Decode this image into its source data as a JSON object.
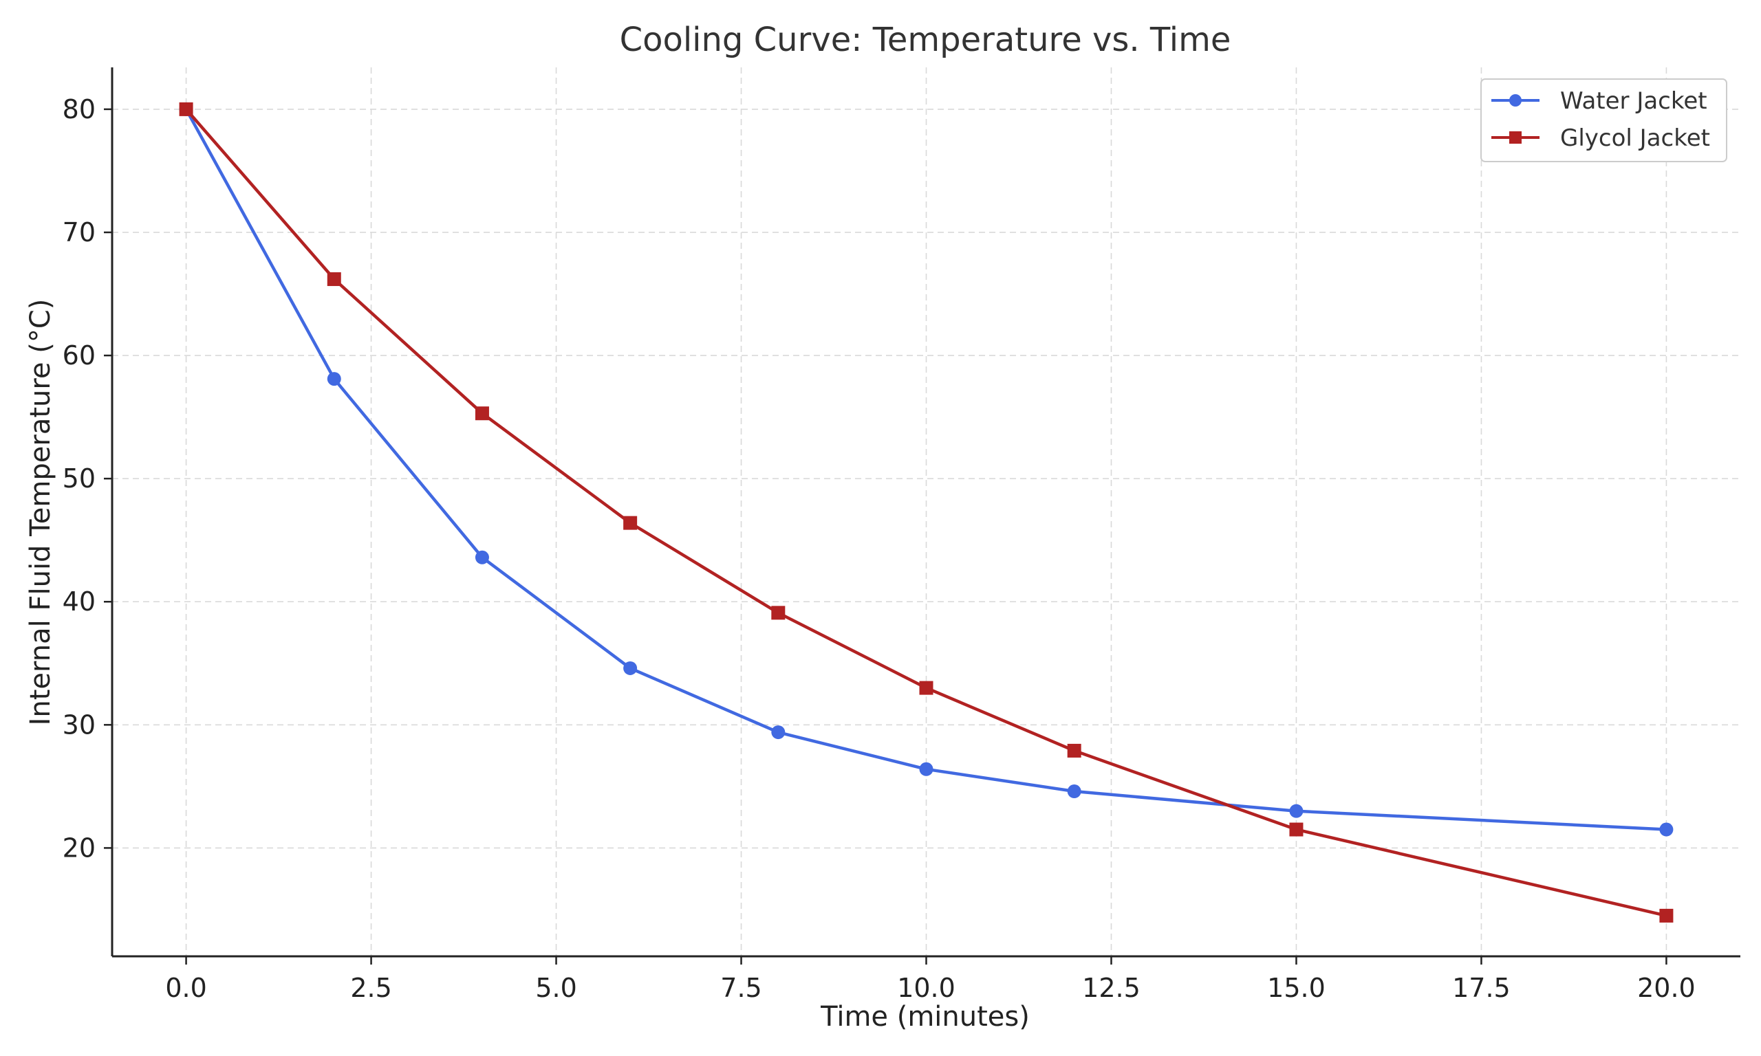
{
  "chart_data": {
    "type": "line",
    "title": "Cooling Curve: Temperature vs. Time",
    "xlabel": "Time (minutes)",
    "ylabel": "Internal Fluid Temperature (°C)",
    "xlim": [
      -1,
      21
    ],
    "ylim": [
      11.2,
      83.4
    ],
    "x_ticks": [
      0.0,
      2.5,
      5.0,
      7.5,
      10.0,
      12.5,
      15.0,
      17.5,
      20.0
    ],
    "x_tick_labels": [
      "0.0",
      "2.5",
      "5.0",
      "7.5",
      "10.0",
      "12.5",
      "15.0",
      "17.5",
      "20.0"
    ],
    "y_ticks": [
      20,
      30,
      40,
      50,
      60,
      70,
      80
    ],
    "y_tick_labels": [
      "20",
      "30",
      "40",
      "50",
      "60",
      "70",
      "80"
    ],
    "grid": true,
    "legend_position": "top-right",
    "x": [
      0,
      2,
      4,
      6,
      8,
      10,
      12,
      15,
      20
    ],
    "series": [
      {
        "name": "Water Jacket",
        "color": "#4169e1",
        "marker": "circle",
        "values": [
          80.0,
          58.1,
          43.6,
          34.6,
          29.4,
          26.4,
          24.6,
          23.0,
          21.5
        ]
      },
      {
        "name": "Glycol Jacket",
        "color": "#b22222",
        "marker": "square",
        "values": [
          80.0,
          66.2,
          55.3,
          46.4,
          39.1,
          33.0,
          27.9,
          21.5,
          14.5
        ]
      }
    ]
  }
}
